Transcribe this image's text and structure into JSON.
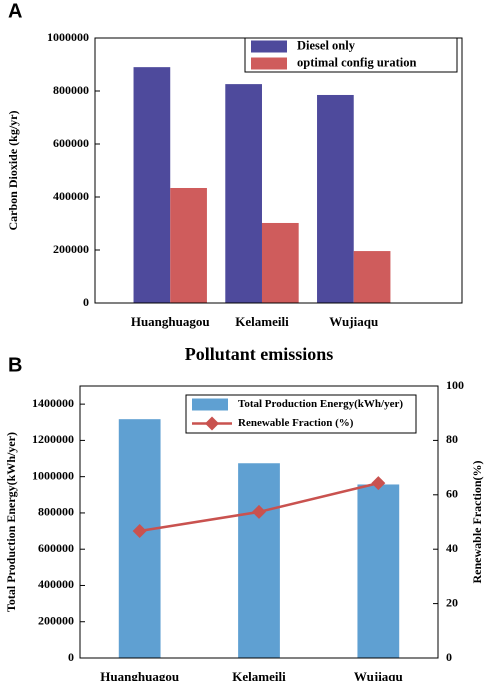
{
  "chart_data": [
    {
      "type": "bar",
      "panel_label": "A",
      "ylabel": "Carbon Dioxide (kg/yr)",
      "categories": [
        "Huanghuagou",
        "Kelameili",
        "Wujiaqu"
      ],
      "series": [
        {
          "name": "Diesel only",
          "color": "#4e4a9c",
          "values": [
            890000,
            826000,
            785000
          ]
        },
        {
          "name": "optimal config uration",
          "color": "#cf5c5c",
          "values": [
            434000,
            302000,
            196000
          ]
        }
      ],
      "ylim": [
        0,
        1000000
      ],
      "yticks": [
        0,
        200000,
        400000,
        600000,
        800000,
        1000000
      ],
      "legend": "upper right"
    },
    {
      "type": "bar_line",
      "panel_label": "B",
      "title": "Pollutant emissions",
      "ylabel": "Total Production Energy(kWh/yer)",
      "y2label": "Renewable Fraction(%)",
      "categories": [
        "Huanghuagou",
        "Kelameili",
        "Wujiaqu"
      ],
      "series": [
        {
          "name": "Total Production Energy(kWh/yer)",
          "color": "#5fa0d2",
          "values": [
            1317000,
            1074000,
            957000
          ]
        },
        {
          "name": "Renewable Fraction (%)",
          "color": "#c9524f",
          "values": [
            46.7,
            53.7,
            64.3
          ],
          "axis": "y2"
        }
      ],
      "ylim": [
        0,
        1500000
      ],
      "yticks": [
        0,
        200000,
        400000,
        600000,
        800000,
        1000000,
        1200000,
        1400000
      ],
      "y2lim": [
        0,
        100
      ],
      "y2ticks": [
        0,
        20,
        40,
        60,
        80,
        100
      ],
      "legend": "upper right"
    }
  ]
}
